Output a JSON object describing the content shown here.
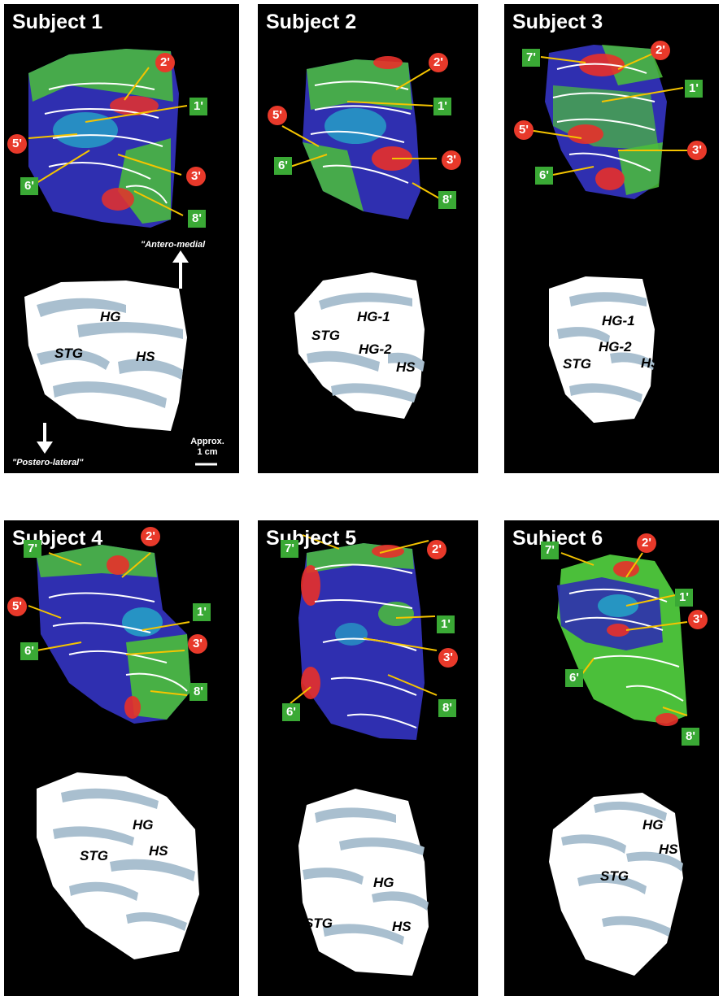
{
  "panels": [
    {
      "title": "Subject 1",
      "labels": [
        {
          "text": "2'",
          "kind": "circle"
        },
        {
          "text": "1'",
          "kind": "square"
        },
        {
          "text": "5'",
          "kind": "circle"
        },
        {
          "text": "3'",
          "kind": "circle"
        },
        {
          "text": "6'",
          "kind": "square"
        },
        {
          "text": "8'",
          "kind": "square"
        }
      ],
      "anatomy": [
        "HG",
        "STG",
        "HS"
      ]
    },
    {
      "title": "Subject 2",
      "labels": [
        {
          "text": "2'",
          "kind": "circle"
        },
        {
          "text": "1'",
          "kind": "square"
        },
        {
          "text": "5'",
          "kind": "circle"
        },
        {
          "text": "3'",
          "kind": "circle"
        },
        {
          "text": "6'",
          "kind": "square"
        },
        {
          "text": "8'",
          "kind": "square"
        }
      ],
      "anatomy": [
        "HG-1",
        "STG",
        "HG-2",
        "HS"
      ]
    },
    {
      "title": "Subject 3",
      "labels": [
        {
          "text": "7'",
          "kind": "square"
        },
        {
          "text": "2'",
          "kind": "circle"
        },
        {
          "text": "1'",
          "kind": "square"
        },
        {
          "text": "5'",
          "kind": "circle"
        },
        {
          "text": "3'",
          "kind": "circle"
        },
        {
          "text": "6'",
          "kind": "square"
        }
      ],
      "anatomy": [
        "HG-1",
        "HG-2",
        "STG",
        "HS"
      ]
    },
    {
      "title": "Subject 4",
      "labels": [
        {
          "text": "7'",
          "kind": "square"
        },
        {
          "text": "2'",
          "kind": "circle"
        },
        {
          "text": "1'",
          "kind": "square"
        },
        {
          "text": "5'",
          "kind": "circle"
        },
        {
          "text": "3'",
          "kind": "circle"
        },
        {
          "text": "6'",
          "kind": "square"
        },
        {
          "text": "8'",
          "kind": "square"
        }
      ],
      "anatomy": [
        "HG",
        "STG",
        "HS"
      ]
    },
    {
      "title": "Subject 5",
      "labels": [
        {
          "text": "7'",
          "kind": "square"
        },
        {
          "text": "2'",
          "kind": "circle"
        },
        {
          "text": "1'",
          "kind": "square"
        },
        {
          "text": "3'",
          "kind": "circle"
        },
        {
          "text": "6'",
          "kind": "square"
        },
        {
          "text": "8'",
          "kind": "square"
        }
      ],
      "anatomy": [
        "HG",
        "STG",
        "HS"
      ]
    },
    {
      "title": "Subject 6",
      "labels": [
        {
          "text": "2'",
          "kind": "circle"
        },
        {
          "text": "7'",
          "kind": "square"
        },
        {
          "text": "1'",
          "kind": "square"
        },
        {
          "text": "3'",
          "kind": "circle"
        },
        {
          "text": "6'",
          "kind": "square"
        },
        {
          "text": "8'",
          "kind": "square"
        }
      ],
      "anatomy": [
        "HG",
        "HS",
        "STG"
      ]
    }
  ],
  "orientation": {
    "antero_medial": "\"Antero-medial",
    "postero_lateral": "\"Postero-lateral\"",
    "scale_top": "Approx.",
    "scale_bottom": "1 cm"
  },
  "colors": {
    "panel_bg": "#000000",
    "square_label": "#3aa935",
    "circle_label": "#e8392a",
    "arrow": "#f5c400",
    "anatomy_fill": "#ffffff",
    "anatomy_sulci": "#a9bfcf"
  }
}
